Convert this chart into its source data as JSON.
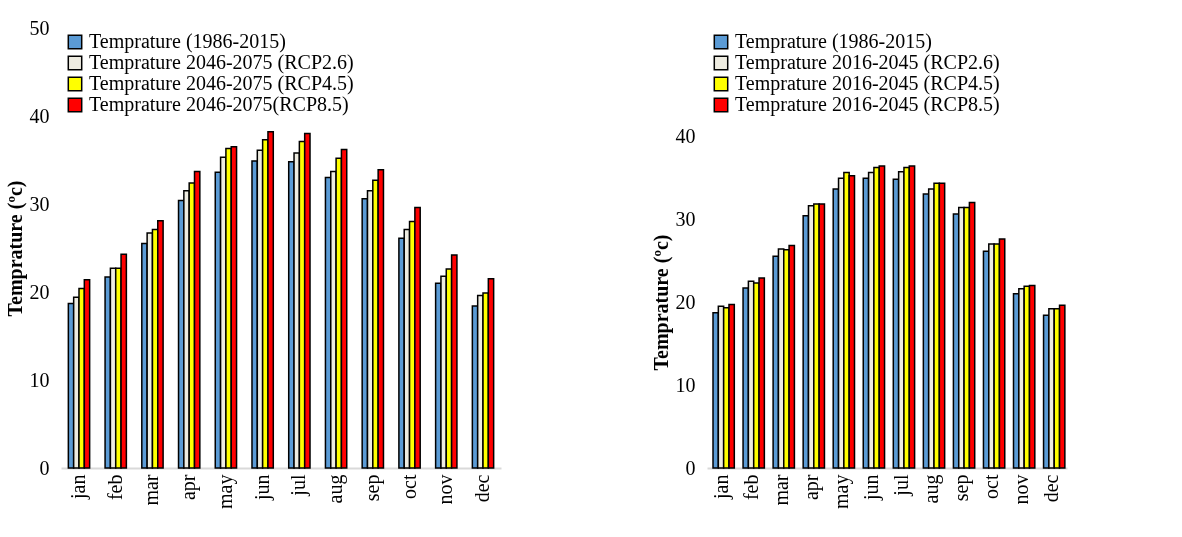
{
  "chart_data": [
    {
      "type": "bar",
      "ylabel": "Temprature (ºc)",
      "categories": [
        "jan",
        "feb",
        "mar",
        "apr",
        "may",
        "jun",
        "jul",
        "aug",
        "sep",
        "oct",
        "nov",
        "dec"
      ],
      "ylim": [
        0,
        50
      ],
      "yticks": [
        0,
        10,
        20,
        30,
        40,
        50
      ],
      "grid": false,
      "legend": "top left",
      "series": [
        {
          "name": "Temprature (1986-2015)",
          "color": "#5b9bd5",
          "values": [
            18.7,
            21.7,
            25.5,
            30.4,
            33.6,
            34.9,
            34.8,
            33.0,
            30.6,
            26.1,
            21.0,
            18.4
          ]
        },
        {
          "name": "Temprature 2046-2075 (RCP2.6)",
          "color": "#eeece1",
          "values": [
            19.4,
            22.7,
            26.7,
            31.5,
            35.3,
            36.1,
            35.8,
            33.7,
            31.5,
            27.1,
            21.8,
            19.6
          ]
        },
        {
          "name": "Temprature 2046-2075 (RCP4.5)",
          "color": "#ffff00",
          "values": [
            20.4,
            22.7,
            27.1,
            32.4,
            36.3,
            37.3,
            37.1,
            35.2,
            32.7,
            28.0,
            22.6,
            19.9
          ]
        },
        {
          "name": "Temprature 2046-2075(RCP8.5)",
          "color": "#ff0000",
          "values": [
            21.4,
            24.3,
            28.1,
            33.7,
            36.5,
            38.2,
            38.0,
            36.2,
            33.9,
            29.6,
            24.2,
            21.5
          ]
        }
      ]
    },
    {
      "type": "bar",
      "ylabel": "Temprature (ºc)",
      "categories": [
        "jan",
        "feb",
        "mar",
        "apr",
        "may",
        "jun",
        "jul",
        "aug",
        "sep",
        "oct",
        "nov",
        "dec"
      ],
      "ylim": [
        0,
        40
      ],
      "yticks": [
        0,
        10,
        20,
        30,
        40
      ],
      "grid": false,
      "legend": "top left",
      "series": [
        {
          "name": "Temprature (1986-2015)",
          "color": "#5b9bd5",
          "values": [
            18.7,
            21.7,
            25.5,
            30.4,
            33.6,
            34.9,
            34.8,
            33.0,
            30.6,
            26.1,
            21.0,
            18.4
          ]
        },
        {
          "name": "Temprature 2016-2045 (RCP2.6)",
          "color": "#eeece1",
          "values": [
            19.5,
            22.5,
            26.4,
            31.6,
            34.9,
            35.6,
            35.7,
            33.6,
            31.4,
            27.0,
            21.6,
            19.2
          ]
        },
        {
          "name": "Temprature 2016-2045 (RCP4.5)",
          "color": "#ffff00",
          "values": [
            19.3,
            22.3,
            26.3,
            31.8,
            35.6,
            36.2,
            36.2,
            34.3,
            31.4,
            27.0,
            21.9,
            19.2
          ]
        },
        {
          "name": "Temprature 2016-2045 (RCP8.5)",
          "color": "#ff0000",
          "values": [
            19.7,
            22.9,
            26.8,
            31.8,
            35.2,
            36.4,
            36.4,
            34.3,
            32.0,
            27.6,
            22.0,
            19.6
          ]
        }
      ]
    }
  ]
}
